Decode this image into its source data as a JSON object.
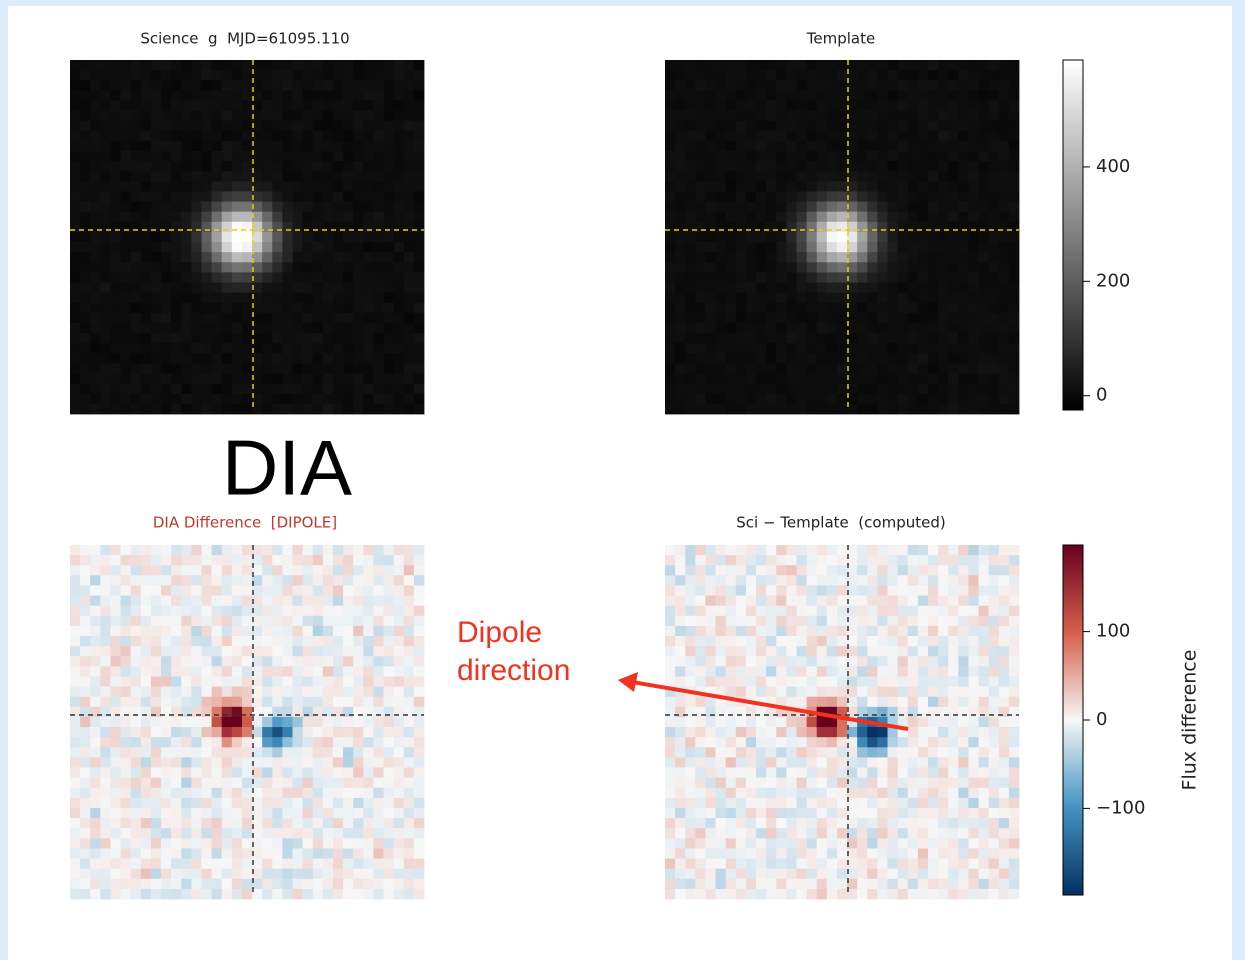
{
  "panels": [
    {
      "title": "Science  g  MJD=61095.110"
    },
    {
      "title": "Template"
    },
    {
      "title": "DIA Difference  [DIPOLE]"
    },
    {
      "title": "Sci − Template  (computed)"
    }
  ],
  "colorbars": [
    {
      "lim": [
        -25,
        587
      ],
      "ticks": [
        0,
        200,
        400
      ]
    },
    {
      "label": "Flux difference",
      "lim": [
        -198,
        198
      ],
      "ticks": [
        {
          "value": -100,
          "label": "−100"
        },
        0,
        100
      ]
    }
  ],
  "annotations": {
    "section": "DIA",
    "arrow_label": "Dipole direction"
  }
}
